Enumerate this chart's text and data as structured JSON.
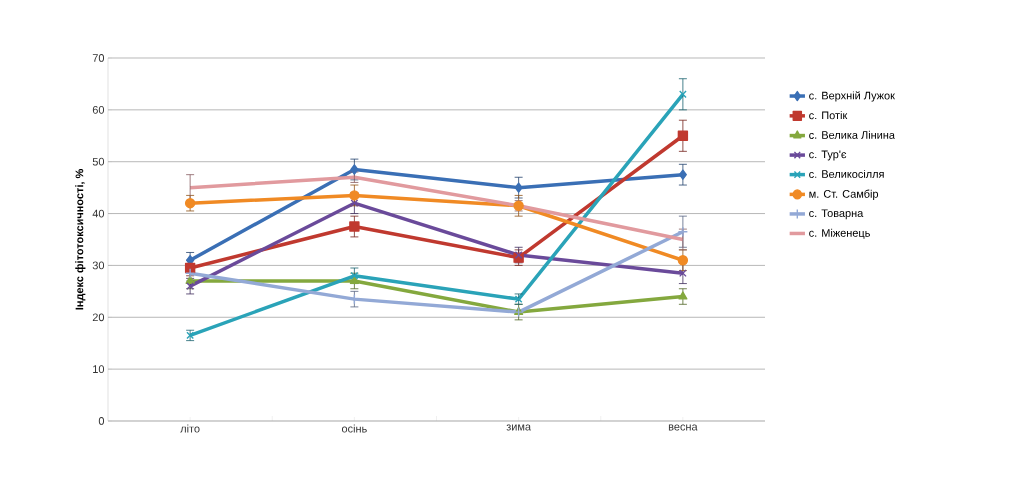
{
  "chart_data": {
    "type": "line",
    "ylabel": "Індекс фітотоксичності, %",
    "categories": [
      "літо",
      "осінь",
      "зима",
      "весна"
    ],
    "ylim": [
      0,
      70
    ],
    "yticks": [
      0,
      10,
      20,
      30,
      40,
      50,
      60,
      70
    ],
    "grid": "y",
    "legend": "right",
    "series": [
      {
        "name": "с. Верхній Лужок",
        "color": "#3a6fb5",
        "marker": "diamond",
        "values": [
          31,
          48.5,
          45,
          47.5
        ],
        "errors": [
          1.5,
          2,
          2,
          2
        ]
      },
      {
        "name": "с. Потік",
        "color": "#c0392f",
        "marker": "square",
        "values": [
          29.5,
          37.5,
          31.5,
          55
        ],
        "errors": [
          1.5,
          2,
          1.5,
          3
        ]
      },
      {
        "name": "с. Велика Лінина",
        "color": "#84a83e",
        "marker": "triangle",
        "values": [
          27,
          27,
          21,
          24
        ],
        "errors": [
          1.5,
          1.5,
          1.5,
          1.5
        ]
      },
      {
        "name": "с. Тур'є",
        "color": "#6a4a9a",
        "marker": "cross",
        "values": [
          26,
          42,
          32,
          28.5
        ],
        "errors": [
          1.5,
          2,
          1.5,
          2
        ]
      },
      {
        "name": "с. Великосілля",
        "color": "#2aa3b8",
        "marker": "cross",
        "values": [
          16.5,
          28,
          23.5,
          63
        ],
        "errors": [
          1,
          1.5,
          1,
          3
        ]
      },
      {
        "name": "м. Ст. Самбір",
        "color": "#f08a24",
        "marker": "circle",
        "values": [
          42,
          43.5,
          41.5,
          31
        ],
        "errors": [
          1.5,
          2,
          2,
          2
        ]
      },
      {
        "name": "с. Товарна",
        "color": "#93a9d6",
        "marker": "plus",
        "values": [
          28.5,
          23.5,
          21,
          36.5
        ],
        "errors": [
          1.5,
          1.5,
          null,
          3
        ]
      },
      {
        "name": "с. Міженець",
        "color": "#e19a9e",
        "marker": "none",
        "values": [
          45,
          47,
          41.5,
          35
        ],
        "errors": [
          2.5,
          1,
          1,
          2
        ]
      }
    ]
  }
}
